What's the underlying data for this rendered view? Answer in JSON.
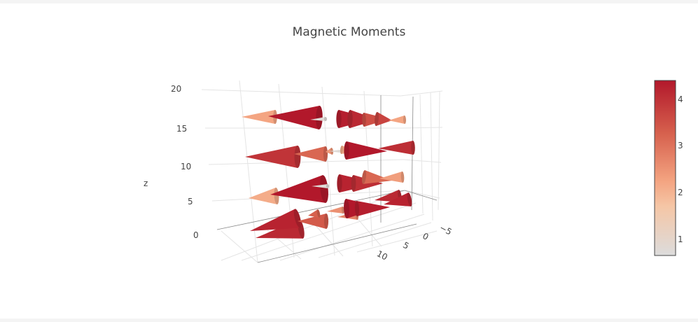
{
  "chart_data": {
    "type": "cone",
    "title": "Magnetic Moments",
    "zlabel": "z",
    "zticks": [
      "0",
      "5",
      "10",
      "15",
      "20"
    ],
    "xticks": [
      "10",
      "5",
      "0",
      "−5"
    ],
    "colorbar": {
      "ticks": [
        "1",
        "2",
        "3",
        "4"
      ],
      "range": [
        0.7,
        4.4
      ],
      "colorscale": [
        "#dcdcdc",
        "#f5c6a6",
        "#f4a582",
        "#d6604d",
        "#b2182b"
      ]
    },
    "layers": [
      {
        "z": 15,
        "cones": [
          {
            "tip": [
              345,
              167
            ],
            "base": [
              393,
              167
            ],
            "h": 20,
            "mag": 2.1
          },
          {
            "tip": [
              383,
              166
            ],
            "base": [
              456,
              168
            ],
            "h": 34,
            "mag": 4.4
          },
          {
            "tip": [
              443,
              171
            ],
            "base": [
              465,
              170
            ],
            "h": 6,
            "mag": 0.8
          },
          {
            "tip": [
              532,
              170
            ],
            "base": [
              484,
              170
            ],
            "h": 26,
            "mag": 4.3
          },
          {
            "tip": [
              540,
              171
            ],
            "base": [
              500,
              170
            ],
            "h": 26,
            "mag": 4.1
          },
          {
            "tip": [
              556,
              170
            ],
            "base": [
              520,
              171
            ],
            "h": 20,
            "mag": 3.4
          },
          {
            "tip": [
              560,
              172
            ],
            "base": [
              538,
              170
            ],
            "h": 20,
            "mag": 3.6
          },
          {
            "tip": [
              555,
              172
            ],
            "base": [
              578,
              171
            ],
            "h": 12,
            "mag": 2.1
          }
        ]
      },
      {
        "z": 10,
        "cones": [
          {
            "tip": [
              350,
              224
            ],
            "base": [
              425,
              224
            ],
            "h": 32,
            "mag": 3.9
          },
          {
            "tip": [
              420,
              220
            ],
            "base": [
              465,
              220
            ],
            "h": 22,
            "mag": 3.0
          },
          {
            "tip": [
              465,
              217
            ],
            "base": [
              474,
              216
            ],
            "h": 10,
            "mag": 2.3
          },
          {
            "tip": [
              470,
              216
            ],
            "base": [
              493,
              216
            ],
            "h": 6,
            "mag": 0.8
          },
          {
            "tip": [
              512,
              216
            ],
            "base": [
              488,
              214
            ],
            "h": 12,
            "mag": 2.0
          },
          {
            "tip": [
              553,
              216
            ],
            "base": [
              495,
              215
            ],
            "h": 26,
            "mag": 4.4
          },
          {
            "tip": [
              540,
              212
            ],
            "base": [
              590,
              211
            ],
            "h": 20,
            "mag": 4.0
          }
        ]
      },
      {
        "z": 5,
        "cones": [
          {
            "tip": [
              355,
              283
            ],
            "base": [
              395,
              280
            ],
            "h": 24,
            "mag": 2.0
          },
          {
            "tip": [
              386,
              278
            ],
            "base": [
              463,
              270
            ],
            "h": 40,
            "mag": 4.4
          },
          {
            "tip": [
              445,
              266
            ],
            "base": [
              468,
              266
            ],
            "h": 6,
            "mag": 0.8
          },
          {
            "tip": [
              540,
              262
            ],
            "base": [
              485,
              262
            ],
            "h": 26,
            "mag": 4.2
          },
          {
            "tip": [
              547,
              262
            ],
            "base": [
              505,
              262
            ],
            "h": 24,
            "mag": 4.0
          },
          {
            "tip": [
              560,
              258
            ],
            "base": [
              520,
              253
            ],
            "h": 20,
            "mag": 3.0
          },
          {
            "tip": [
              542,
              255
            ],
            "base": [
              575,
              253
            ],
            "h": 16,
            "mag": 2.2
          }
        ]
      },
      {
        "z": 0,
        "cones": [
          {
            "tip": [
              365,
              340
            ],
            "base": [
              430,
              327
            ],
            "h": 28,
            "mag": 4.1
          },
          {
            "tip": [
              357,
              330
            ],
            "base": [
              425,
              312
            ],
            "h": 28,
            "mag": 4.2
          },
          {
            "tip": [
              425,
              316
            ],
            "base": [
              466,
              316
            ],
            "h": 22,
            "mag": 3.2
          },
          {
            "tip": [
              440,
              308
            ],
            "base": [
              455,
              305
            ],
            "h": 12,
            "mag": 3.1
          },
          {
            "tip": [
              467,
              302
            ],
            "base": [
              490,
              300
            ],
            "h": 10,
            "mag": 2.4
          },
          {
            "tip": [
              482,
              310
            ],
            "base": [
              510,
              308
            ],
            "h": 12,
            "mag": 2.6
          },
          {
            "tip": [
              545,
              296
            ],
            "base": [
              495,
              298
            ],
            "h": 28,
            "mag": 4.4
          },
          {
            "tip": [
              557,
              296
            ],
            "base": [
              510,
              298
            ],
            "h": 22,
            "mag": 4.3
          },
          {
            "tip": [
              535,
              286
            ],
            "base": [
              571,
              280
            ],
            "h": 18,
            "mag": 4.1
          },
          {
            "tip": [
              548,
              292
            ],
            "base": [
              585,
              285
            ],
            "h": 20,
            "mag": 4.2
          }
        ]
      }
    ]
  }
}
